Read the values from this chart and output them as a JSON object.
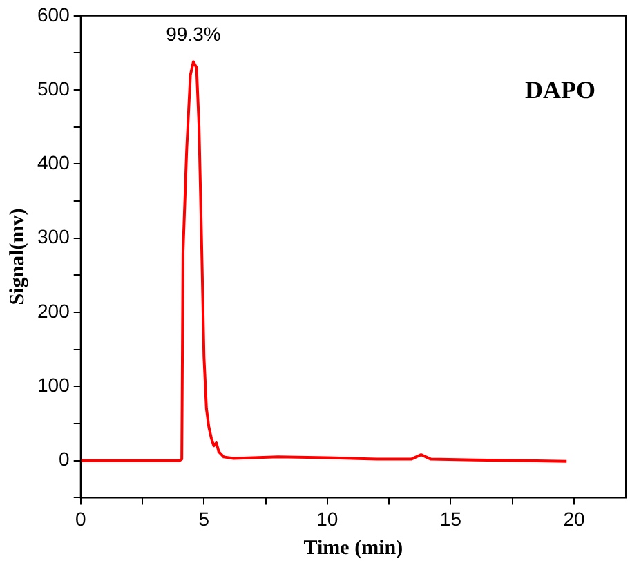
{
  "chart_data": {
    "type": "line",
    "xlabel": "Time (min)",
    "ylabel": "Signal(mv)",
    "annotations": [
      {
        "text": "99.3%",
        "x": 4.57,
        "y": 538
      },
      "DAPO"
    ],
    "series": [
      {
        "color": "#ff0000",
        "x": [
          0,
          4.0,
          4.1,
          4.15,
          4.3,
          4.45,
          4.57,
          4.7,
          4.8,
          4.9,
          5.0,
          5.1,
          5.2,
          5.3,
          5.4,
          5.5,
          5.6,
          5.8,
          6.2,
          8,
          10,
          12,
          13.4,
          13.8,
          14.2,
          16,
          18,
          19.7
        ],
        "values": [
          0,
          0,
          2,
          280,
          420,
          520,
          538,
          530,
          450,
          300,
          140,
          70,
          45,
          30,
          20,
          24,
          12,
          5,
          3,
          5,
          4,
          2,
          2,
          8,
          2,
          1,
          0,
          -1
        ]
      }
    ],
    "xlim": [
      0,
      22.1
    ],
    "ylim": [
      -50,
      600
    ],
    "xticks": [
      0,
      {
        "value": 2.5,
        "label": null
      },
      5,
      {
        "value": 7.5,
        "label": null
      },
      10,
      {
        "value": 12.5,
        "label": null
      },
      15,
      {
        "value": 17.5,
        "label": null
      },
      20
    ],
    "yticks": [
      {
        "value": -50,
        "label": null
      },
      0,
      {
        "value": 50,
        "label": null
      },
      100,
      {
        "value": 150,
        "label": null
      },
      200,
      {
        "value": 250,
        "label": null
      },
      300,
      {
        "value": 350,
        "label": null
      },
      400,
      {
        "value": 450,
        "label": null
      },
      500,
      {
        "value": 550,
        "label": null
      },
      600
    ],
    "grid": false,
    "legend": false,
    "marker": "none",
    "line_style": "solid"
  }
}
